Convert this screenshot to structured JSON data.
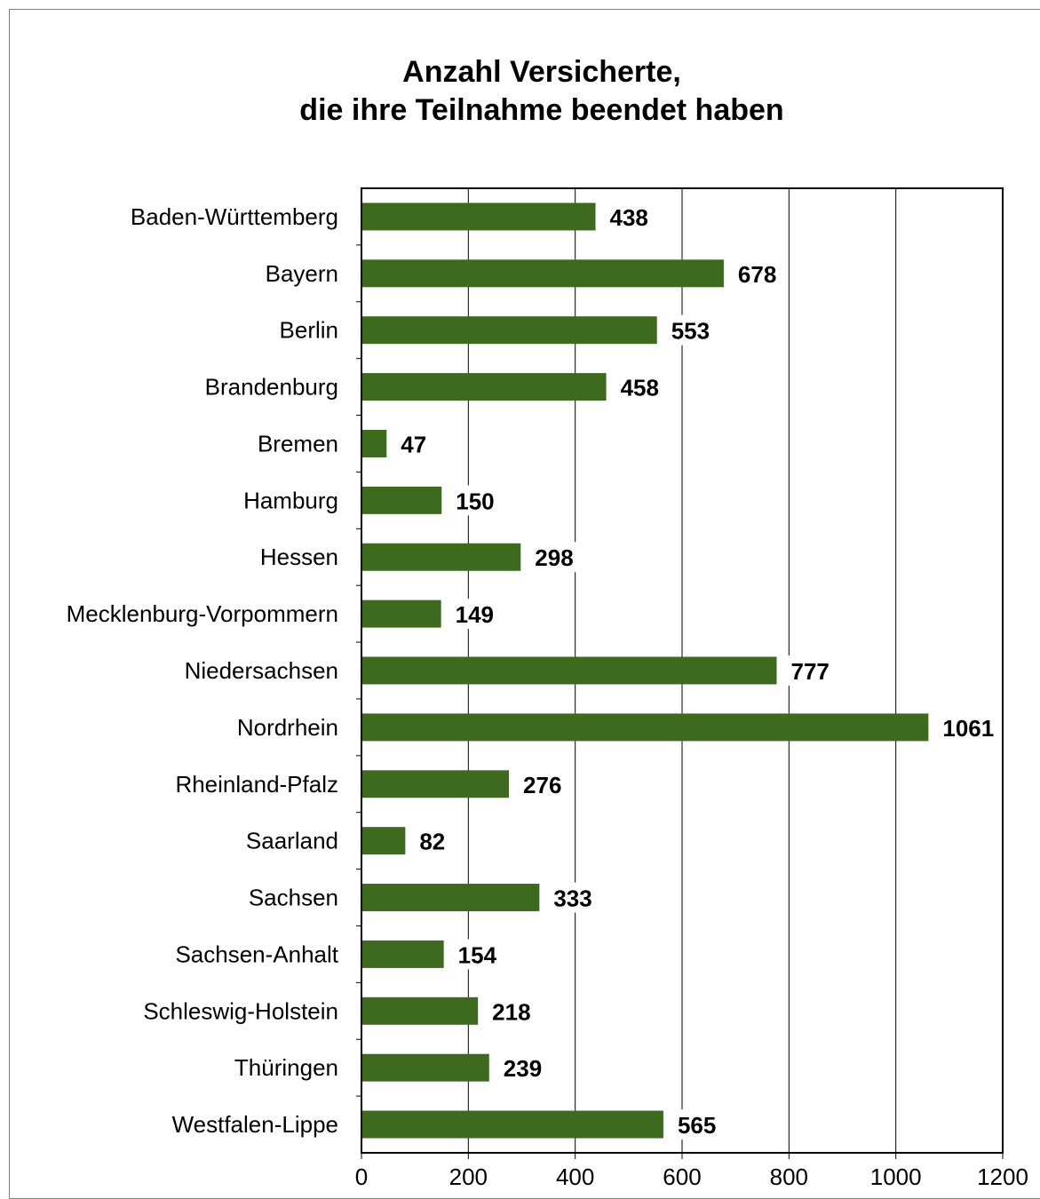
{
  "chart_data": {
    "type": "bar",
    "orientation": "horizontal",
    "title_lines": [
      "Anzahl Versicherte,",
      "die ihre Teilnahme beendet haben"
    ],
    "categories": [
      "Baden-Württemberg",
      "Bayern",
      "Berlin",
      "Brandenburg",
      "Bremen",
      "Hamburg",
      "Hessen",
      "Mecklenburg-Vorpommern",
      "Niedersachsen",
      "Nordrhein",
      "Rheinland-Pfalz",
      "Saarland",
      "Sachsen",
      "Sachsen-Anhalt",
      "Schleswig-Holstein",
      "Thüringen",
      "Westfalen-Lippe"
    ],
    "values": [
      438,
      678,
      553,
      458,
      47,
      150,
      298,
      149,
      777,
      1061,
      276,
      82,
      333,
      154,
      218,
      239,
      565
    ],
    "xlim": [
      0,
      1200
    ],
    "xticks": [
      0,
      200,
      400,
      600,
      800,
      1000,
      1200
    ],
    "xtick_labels": [
      "0",
      "200",
      "400",
      "600",
      "800",
      "1000",
      "1200"
    ],
    "data_labels": true,
    "grid": "vertical",
    "bar_color": "#3e6a1f",
    "legend": "none"
  }
}
